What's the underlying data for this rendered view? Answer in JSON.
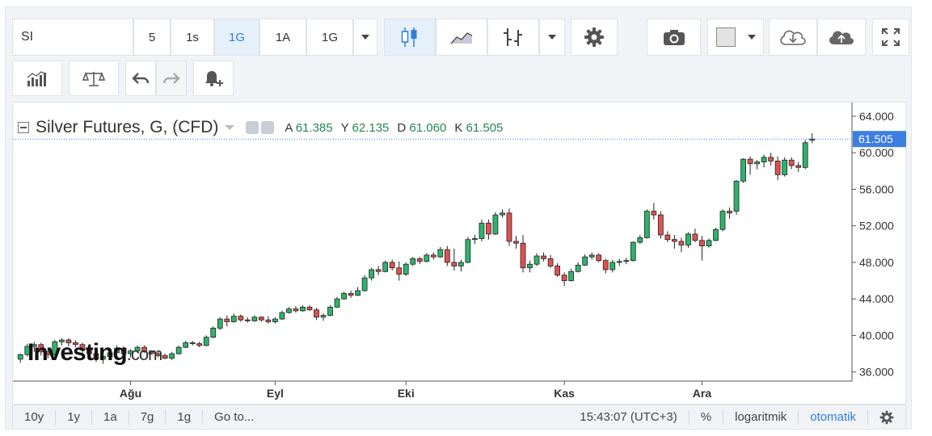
{
  "toolbar": {
    "symbol": "SI",
    "intervals": [
      "5",
      "1s",
      "1G",
      "1A",
      "1G"
    ],
    "active_interval_index": 2
  },
  "legend": {
    "title": "Silver Futures, G, (CFD)",
    "open_label": "A",
    "open": "61.385",
    "high_label": "Y",
    "high": "62.135",
    "low_label": "D",
    "low": "61.060",
    "close_label": "K",
    "close": "61.505"
  },
  "logo": {
    "brand": "Investing",
    "suffix": ".com"
  },
  "bottom": {
    "ranges": [
      "10y",
      "1y",
      "1a",
      "7g",
      "1g"
    ],
    "goto": "Go to...",
    "time": "15:43:07 (UTC+3)",
    "percent": "%",
    "log": "logaritmik",
    "auto": "otomatik"
  },
  "colors": {
    "up": "#2fb36c",
    "down": "#e05252",
    "price_tag": "#3d7fe0"
  },
  "chart_data": {
    "type": "candlestick",
    "y_ticks": [
      "64.000",
      "60.000",
      "56.000",
      "52.000",
      "48.000",
      "44.000",
      "40.000",
      "36.000"
    ],
    "ylim": [
      35,
      65.5
    ],
    "x_labels": [
      "Ağu",
      "Eyl",
      "Eki",
      "Kas",
      "Ara"
    ],
    "x_label_positions": [
      16,
      37,
      56,
      79,
      99
    ],
    "last_price": "61.505",
    "candles": [
      [
        37.4,
        38.0,
        37.0,
        37.9
      ],
      [
        37.9,
        39.1,
        37.7,
        38.8
      ],
      [
        38.8,
        39.3,
        38.2,
        39.0
      ],
      [
        39.0,
        39.2,
        37.8,
        38.2
      ],
      [
        38.2,
        38.6,
        37.5,
        37.9
      ],
      [
        37.9,
        39.5,
        37.8,
        39.3
      ],
      [
        39.3,
        39.7,
        38.9,
        39.5
      ],
      [
        39.5,
        39.7,
        38.8,
        39.2
      ],
      [
        39.2,
        39.5,
        38.7,
        39.0
      ],
      [
        39.0,
        39.2,
        38.1,
        38.4
      ],
      [
        38.4,
        38.7,
        37.6,
        38.0
      ],
      [
        38.0,
        38.3,
        37.1,
        37.4
      ],
      [
        37.4,
        37.8,
        36.9,
        37.7
      ],
      [
        37.7,
        38.3,
        37.4,
        38.1
      ],
      [
        38.1,
        38.9,
        37.9,
        38.6
      ],
      [
        38.6,
        38.8,
        37.8,
        38.0
      ],
      [
        38.0,
        38.5,
        37.6,
        38.3
      ],
      [
        38.3,
        38.9,
        38.1,
        38.7
      ],
      [
        38.7,
        38.9,
        38.1,
        38.2
      ],
      [
        38.2,
        38.4,
        37.9,
        38.0
      ],
      [
        38.0,
        38.2,
        37.6,
        37.8
      ],
      [
        37.8,
        38.0,
        37.4,
        37.5
      ],
      [
        37.5,
        38.2,
        37.3,
        38.0
      ],
      [
        38.0,
        38.9,
        37.9,
        38.7
      ],
      [
        38.7,
        39.4,
        38.6,
        39.2
      ],
      [
        39.2,
        39.4,
        38.9,
        39.1
      ],
      [
        39.1,
        39.3,
        38.7,
        38.9
      ],
      [
        38.9,
        40.0,
        38.8,
        39.8
      ],
      [
        39.8,
        41.0,
        39.7,
        40.8
      ],
      [
        40.8,
        42.0,
        40.6,
        41.8
      ],
      [
        41.8,
        42.2,
        41.0,
        41.5
      ],
      [
        41.5,
        42.4,
        41.4,
        42.1
      ],
      [
        42.1,
        42.3,
        41.5,
        41.7
      ],
      [
        41.7,
        42.0,
        41.4,
        41.6
      ],
      [
        41.6,
        42.2,
        41.5,
        42.0
      ],
      [
        42.0,
        42.1,
        41.5,
        41.7
      ],
      [
        41.7,
        42.1,
        41.3,
        41.5
      ],
      [
        41.5,
        42.0,
        41.3,
        41.8
      ],
      [
        41.8,
        42.7,
        41.7,
        42.5
      ],
      [
        42.5,
        43.1,
        42.4,
        42.9
      ],
      [
        42.9,
        43.2,
        42.5,
        42.7
      ],
      [
        42.7,
        43.3,
        42.6,
        43.1
      ],
      [
        43.1,
        43.3,
        42.7,
        42.8
      ],
      [
        42.8,
        43.0,
        41.7,
        42.0
      ],
      [
        42.0,
        42.4,
        41.6,
        42.2
      ],
      [
        42.2,
        43.3,
        42.1,
        43.1
      ],
      [
        43.1,
        44.2,
        43.0,
        44.0
      ],
      [
        44.0,
        44.8,
        43.9,
        44.6
      ],
      [
        44.6,
        44.9,
        44.1,
        44.4
      ],
      [
        44.4,
        45.3,
        44.3,
        44.9
      ],
      [
        44.9,
        46.6,
        44.8,
        46.3
      ],
      [
        46.3,
        47.4,
        46.0,
        47.2
      ],
      [
        47.2,
        47.6,
        46.6,
        47.0
      ],
      [
        47.0,
        48.2,
        46.9,
        48.0
      ],
      [
        48.0,
        48.3,
        47.1,
        47.4
      ],
      [
        47.4,
        48.1,
        46.0,
        46.7
      ],
      [
        46.7,
        48.0,
        46.5,
        47.8
      ],
      [
        47.8,
        48.6,
        47.6,
        48.4
      ],
      [
        48.4,
        48.6,
        47.8,
        48.1
      ],
      [
        48.1,
        49.0,
        48.0,
        48.8
      ],
      [
        48.8,
        49.1,
        48.3,
        48.6
      ],
      [
        48.6,
        49.7,
        48.5,
        49.4
      ],
      [
        49.4,
        49.8,
        47.6,
        48.0
      ],
      [
        48.0,
        49.5,
        47.1,
        47.6
      ],
      [
        47.6,
        48.3,
        47.0,
        48.0
      ],
      [
        48.0,
        50.8,
        47.9,
        50.5
      ],
      [
        50.5,
        51.0,
        50.0,
        50.6
      ],
      [
        50.6,
        52.7,
        50.3,
        52.3
      ],
      [
        52.3,
        52.7,
        50.5,
        51.1
      ],
      [
        51.1,
        53.5,
        51.0,
        53.2
      ],
      [
        53.2,
        53.8,
        52.9,
        53.4
      ],
      [
        53.4,
        53.9,
        49.8,
        50.3
      ],
      [
        50.3,
        50.9,
        49.5,
        50.1
      ],
      [
        50.1,
        51.0,
        46.9,
        47.4
      ],
      [
        47.4,
        48.2,
        46.9,
        47.8
      ],
      [
        47.8,
        49.0,
        47.6,
        48.7
      ],
      [
        48.7,
        49.1,
        48.1,
        48.4
      ],
      [
        48.4,
        48.8,
        47.4,
        47.6
      ],
      [
        47.6,
        47.9,
        46.4,
        46.6
      ],
      [
        46.6,
        46.9,
        45.4,
        46.0
      ],
      [
        46.0,
        47.3,
        45.9,
        47.0
      ],
      [
        47.0,
        48.0,
        46.9,
        47.7
      ],
      [
        47.7,
        48.9,
        47.6,
        48.6
      ],
      [
        48.6,
        49.1,
        48.3,
        48.8
      ],
      [
        48.8,
        49.0,
        48.0,
        48.2
      ],
      [
        48.2,
        48.4,
        46.8,
        47.2
      ],
      [
        47.2,
        48.3,
        46.9,
        48.0
      ],
      [
        48.0,
        48.4,
        47.6,
        48.1
      ],
      [
        48.1,
        48.5,
        47.8,
        48.2
      ],
      [
        48.2,
        50.3,
        48.1,
        50.2
      ],
      [
        50.2,
        51.0,
        50.0,
        50.7
      ],
      [
        50.7,
        53.8,
        50.6,
        53.6
      ],
      [
        53.6,
        54.5,
        52.7,
        53.2
      ],
      [
        53.2,
        53.6,
        50.6,
        51.0
      ],
      [
        51.0,
        51.4,
        50.2,
        50.5
      ],
      [
        50.5,
        51.0,
        49.5,
        50.3
      ],
      [
        50.3,
        50.7,
        49.1,
        49.9
      ],
      [
        49.9,
        51.3,
        49.6,
        51.1
      ],
      [
        51.1,
        51.7,
        50.2,
        50.4
      ],
      [
        50.4,
        50.9,
        48.2,
        49.8
      ],
      [
        49.8,
        50.6,
        49.6,
        50.4
      ],
      [
        50.4,
        51.8,
        50.3,
        51.6
      ],
      [
        51.6,
        53.8,
        51.4,
        53.6
      ],
      [
        53.6,
        54.0,
        52.8,
        53.4
      ],
      [
        53.6,
        57.0,
        53.2,
        56.9
      ],
      [
        56.9,
        59.4,
        56.7,
        59.3
      ],
      [
        59.3,
        59.6,
        57.6,
        58.8
      ],
      [
        58.8,
        59.2,
        58.2,
        59.0
      ],
      [
        59.0,
        59.8,
        58.4,
        59.5
      ],
      [
        59.5,
        60.0,
        58.6,
        59.1
      ],
      [
        59.1,
        59.6,
        57.0,
        57.6
      ],
      [
        57.6,
        59.5,
        57.4,
        59.2
      ],
      [
        59.2,
        59.5,
        58.2,
        58.6
      ],
      [
        58.6,
        59.0,
        57.9,
        58.4
      ],
      [
        58.4,
        61.4,
        58.2,
        61.1
      ],
      [
        61.385,
        62.135,
        61.06,
        61.505
      ]
    ]
  }
}
